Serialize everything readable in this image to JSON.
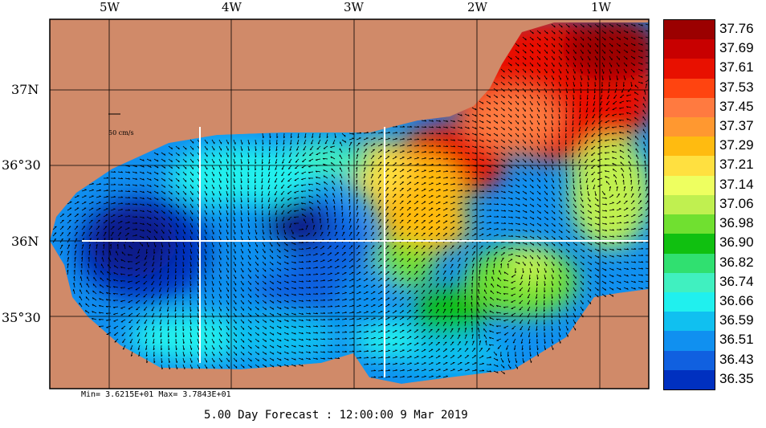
{
  "longitude_labels": [
    "5W",
    "4W",
    "3W",
    "2W",
    "1W"
  ],
  "latitude_labels": [
    "37N",
    "36°30",
    "36N",
    "35°30"
  ],
  "scale": {
    "label": "50 cm/s"
  },
  "colorbar": {
    "labels": [
      "37.76",
      "37.69",
      "37.61",
      "37.53",
      "37.45",
      "37.37",
      "37.29",
      "37.21",
      "37.14",
      "37.06",
      "36.98",
      "36.90",
      "36.82",
      "36.74",
      "36.66",
      "36.59",
      "36.51",
      "36.43",
      "36.35"
    ],
    "colors": [
      "#9b0000",
      "#c80000",
      "#e81000",
      "#ff4410",
      "#ff7a40",
      "#ff9830",
      "#ffbb10",
      "#ffe040",
      "#eeff60",
      "#c0f050",
      "#70e030",
      "#10c010",
      "#30e070",
      "#40f0c0",
      "#20f0ee",
      "#10c0f0",
      "#1090f0",
      "#1060e0",
      "#0030c0"
    ]
  },
  "colors": {
    "land": "#d08a69",
    "sea_deep": "#0a1e8a",
    "vector": "#000000",
    "grid": "#000000",
    "section_line": "#ffffff"
  },
  "stats": {
    "text": "Min= 3.6215E+01  Max= 3.7843E+01"
  },
  "footer": {
    "text": "5.00 Day Forecast : 12:00:00   9 Mar 2019"
  }
}
